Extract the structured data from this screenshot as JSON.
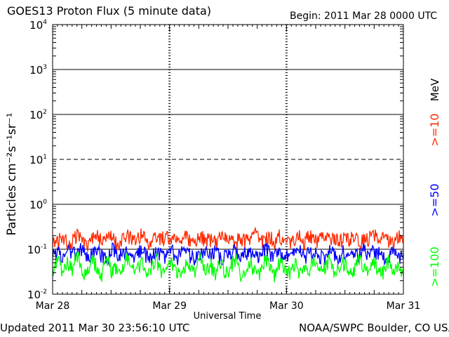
{
  "header": {
    "title": "GOES13 Proton Flux (5 minute data)",
    "begin": "Begin: 2011 Mar 28 0000 UTC"
  },
  "footer": {
    "updated": "Updated 2011 Mar 30 23:56:10 UTC",
    "credit": "NOAA/SWPC Boulder, CO USA"
  },
  "chart_data": {
    "type": "line",
    "title": "GOES13 Proton Flux (5 minute data)",
    "xlabel": "Universal Time",
    "ylabel": "Particles cm⁻²s⁻¹sr⁻¹",
    "yscale": "log",
    "ylim": [
      0.01,
      10000
    ],
    "x_tick_labels": [
      "Mar 28",
      "Mar 29",
      "Mar 30",
      "Mar 31"
    ],
    "y_tick_labels": [
      {
        "base": "10",
        "exp": "-2"
      },
      {
        "base": "10",
        "exp": "-1"
      },
      {
        "base": "10",
        "exp": "0"
      },
      {
        "base": "10",
        "exp": "1"
      },
      {
        "base": "10",
        "exp": "2"
      },
      {
        "base": "10",
        "exp": "3"
      },
      {
        "base": "10",
        "exp": "4"
      }
    ],
    "threshold_lines": [
      {
        "value": 10,
        "style": "dashed"
      }
    ],
    "grid": true,
    "legend_position": "right",
    "unit_label": "MeV",
    "series": [
      {
        "name": ">=10",
        "color": "#ff2a00",
        "values": [
          0.17,
          0.14,
          0.2,
          0.13,
          0.16,
          0.21,
          0.15,
          0.12,
          0.18,
          0.22,
          0.14,
          0.16,
          0.19,
          0.13,
          0.15,
          0.2,
          0.17,
          0.14,
          0.23,
          0.15,
          0.13,
          0.18,
          0.16,
          0.21,
          0.14,
          0.17,
          0.15,
          0.19,
          0.13,
          0.16,
          0.2,
          0.15,
          0.17,
          0.14,
          0.18,
          0.22,
          0.16,
          0.13,
          0.19,
          0.15,
          0.17,
          0.21,
          0.14,
          0.16,
          0.18,
          0.15,
          0.2,
          0.17,
          0.13,
          0.16,
          0.19,
          0.14,
          0.22,
          0.15,
          0.17,
          0.18,
          0.16,
          0.2,
          0.14,
          0.17,
          0.15,
          0.19,
          0.13,
          0.16,
          0.18,
          0.21,
          0.15,
          0.17,
          0.16,
          0.14,
          0.19,
          0.17
        ]
      },
      {
        "name": ">=50",
        "color": "#0000ff",
        "values": [
          0.07,
          0.09,
          0.06,
          0.1,
          0.08,
          0.07,
          0.11,
          0.06,
          0.08,
          0.09,
          0.07,
          0.06,
          0.1,
          0.08,
          0.07,
          0.09,
          0.06,
          0.08,
          0.1,
          0.07,
          0.06,
          0.09,
          0.08,
          0.07,
          0.1,
          0.06,
          0.08,
          0.09,
          0.07,
          0.06,
          0.08,
          0.1,
          0.07,
          0.09,
          0.06,
          0.08,
          0.07,
          0.1,
          0.06,
          0.08,
          0.09,
          0.07,
          0.06,
          0.1,
          0.08,
          0.07,
          0.09,
          0.06,
          0.08,
          0.07,
          0.1,
          0.06,
          0.09,
          0.08,
          0.07,
          0.06,
          0.1,
          0.08,
          0.07,
          0.09,
          0.06,
          0.08,
          0.07,
          0.1,
          0.06,
          0.09,
          0.08,
          0.07,
          0.06,
          0.09,
          0.07,
          0.08
        ]
      },
      {
        "name": ">=100",
        "color": "#00ff00",
        "values": [
          0.03,
          0.06,
          0.025,
          0.05,
          0.035,
          0.07,
          0.03,
          0.025,
          0.055,
          0.04,
          0.028,
          0.06,
          0.03,
          0.045,
          0.025,
          0.065,
          0.035,
          0.03,
          0.05,
          0.025,
          0.04,
          0.06,
          0.03,
          0.028,
          0.055,
          0.035,
          0.025,
          0.05,
          0.04,
          0.03,
          0.065,
          0.028,
          0.045,
          0.025,
          0.055,
          0.03,
          0.04,
          0.06,
          0.025,
          0.035,
          0.05,
          0.03,
          0.028,
          0.06,
          0.04,
          0.025,
          0.055,
          0.035,
          0.03,
          0.05,
          0.028,
          0.045,
          0.025,
          0.065,
          0.03,
          0.04,
          0.055,
          0.025,
          0.035,
          0.05,
          0.03,
          0.028,
          0.06,
          0.04,
          0.025,
          0.05,
          0.035,
          0.03,
          0.055,
          0.028,
          0.04,
          0.03
        ]
      }
    ]
  }
}
